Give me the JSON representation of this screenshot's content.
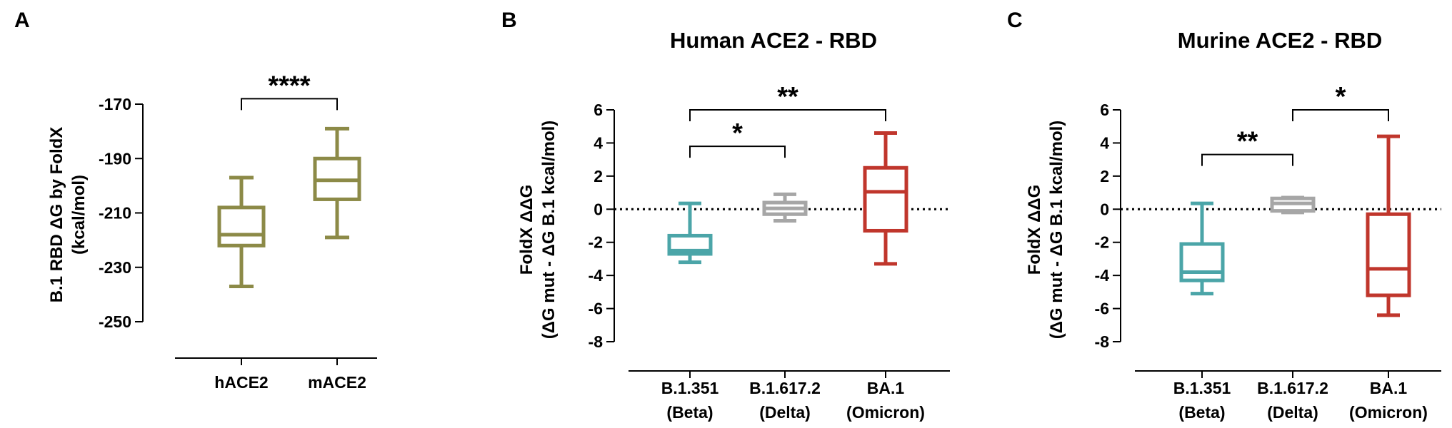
{
  "chart_data": [
    {
      "panel": "A",
      "type": "box",
      "title": "",
      "ylabel_line1": "B.1 RBD ΔG by FoldX",
      "ylabel_line2": "(kcal/mol)",
      "xlabel": "",
      "ylim": [
        -250,
        -170
      ],
      "yticks": [
        -170,
        -190,
        -210,
        -230,
        -250
      ],
      "zero_line": false,
      "categories": [
        {
          "label1": "hACE2",
          "label2": "",
          "color": "#8C8A47",
          "min": -237,
          "q1": -222,
          "median": -218,
          "q3": -208,
          "max": -197
        },
        {
          "label1": "mACE2",
          "label2": "",
          "color": "#8C8A47",
          "min": -219,
          "q1": -205,
          "median": -198,
          "q3": -190,
          "max": -179
        }
      ],
      "significance": [
        {
          "from": 0,
          "to": 1,
          "label": "****",
          "level": -168
        }
      ]
    },
    {
      "panel": "B",
      "type": "box",
      "title": "Human ACE2 - RBD",
      "ylabel_line1": "FoldX ΔΔG",
      "ylabel_line2": "(ΔG mut - ΔG B.1 kcal/mol)",
      "xlabel": "",
      "ylim": [
        -8,
        6
      ],
      "yticks": [
        6,
        4,
        2,
        0,
        -2,
        -4,
        -6,
        -8
      ],
      "zero_line": true,
      "categories": [
        {
          "label1": "B.1.351",
          "label2": "(Beta)",
          "color": "#4BA5A8",
          "min": -3.2,
          "q1": -2.7,
          "median": -2.5,
          "q3": -1.6,
          "max": 0.35
        },
        {
          "label1": "B.1.617.2",
          "label2": "(Delta)",
          "color": "#A6A6A6",
          "min": -0.7,
          "q1": -0.3,
          "median": 0.05,
          "q3": 0.4,
          "max": 0.9
        },
        {
          "label1": "BA.1",
          "label2": "(Omicron)",
          "color": "#C0362C",
          "min": -3.3,
          "q1": -1.3,
          "median": 1.05,
          "q3": 2.5,
          "max": 4.6
        }
      ],
      "significance": [
        {
          "from": 0,
          "to": 1,
          "label": "*",
          "level": 3.8
        },
        {
          "from": 0,
          "to": 2,
          "label": "**",
          "level": 6.0
        }
      ]
    },
    {
      "panel": "C",
      "type": "box",
      "title": "Murine ACE2 - RBD",
      "ylabel_line1": "FoldX ΔΔG",
      "ylabel_line2": "(ΔG mut - ΔG B.1 kcal/mol)",
      "xlabel": "",
      "ylim": [
        -8,
        6
      ],
      "yticks": [
        6,
        4,
        2,
        0,
        -2,
        -4,
        -6,
        -8
      ],
      "zero_line": true,
      "categories": [
        {
          "label1": "B.1.351",
          "label2": "(Beta)",
          "color": "#4BA5A8",
          "min": -5.1,
          "q1": -4.3,
          "median": -3.8,
          "q3": -2.1,
          "max": 0.35
        },
        {
          "label1": "B.1.617.2",
          "label2": "(Delta)",
          "color": "#A6A6A6",
          "min": -0.2,
          "q1": -0.1,
          "median": 0.35,
          "q3": 0.65,
          "max": 0.7
        },
        {
          "label1": "BA.1",
          "label2": "(Omicron)",
          "color": "#C0362C",
          "min": -6.4,
          "q1": -5.2,
          "median": -3.6,
          "q3": -0.3,
          "max": 4.4
        }
      ],
      "significance": [
        {
          "from": 0,
          "to": 1,
          "label": "**",
          "level": 3.3
        },
        {
          "from": 1,
          "to": 2,
          "label": "*",
          "level": 6.0
        }
      ]
    }
  ]
}
